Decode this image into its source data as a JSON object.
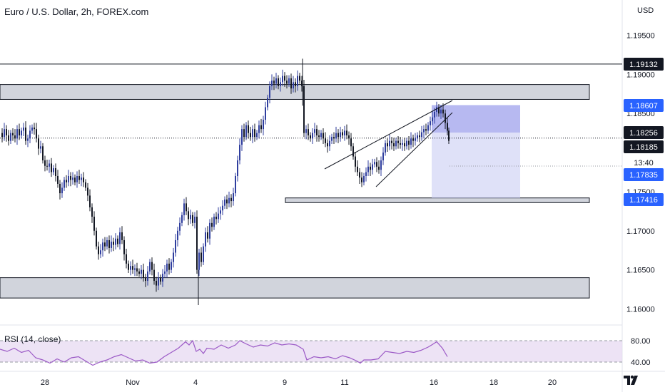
{
  "header": {
    "title": "Euro / U.S. Dollar, 2h, FOREX.com",
    "currency": "USD"
  },
  "rsi": {
    "title": "RSI (14, close)",
    "levels": [
      "80.00",
      "40.00"
    ]
  },
  "colors": {
    "up": "#2f3e9e",
    "down": "#131722",
    "zone_fill": "#d1d4dc",
    "zone_stroke": "#131722",
    "target_zone": "#7b7fe6",
    "stop_zone": "#c5c9f2",
    "rsi_line": "#9b59c6",
    "rsi_band": "#e9dcf2",
    "label_blue": "#2962ff",
    "label_dark": "#131722"
  },
  "chart_data": {
    "type": "candlestick",
    "title": "Euro / U.S. Dollar, 2h, FOREX.com",
    "y_axis": {
      "ticks": [
        "1.19500",
        "1.19000",
        "1.18500",
        "1.17500",
        "1.17000",
        "1.16500",
        "1.16000"
      ],
      "range": [
        1.156,
        1.199
      ]
    },
    "x_axis": {
      "ticks": [
        "28",
        "Nov",
        "4",
        "9",
        "11",
        "16",
        "18",
        "20"
      ]
    },
    "price_labels": [
      {
        "value": "1.19132",
        "style": "dark"
      },
      {
        "value": "1.18607",
        "style": "blue"
      },
      {
        "value": "1.18256",
        "style": "dark"
      },
      {
        "value": "1.18185",
        "style": "dark"
      },
      {
        "value": "13:40",
        "style": "white"
      },
      {
        "value": "1.17835",
        "style": "blue"
      },
      {
        "value": "1.17416",
        "style": "blue"
      }
    ],
    "horizontal_lines": [
      1.19132
    ],
    "dotted_line": 1.18185,
    "zones": [
      {
        "name": "resistance",
        "from": 1.1868,
        "to": 1.1887
      },
      {
        "name": "support-upper",
        "from": 1.1736,
        "to": 1.1742
      },
      {
        "name": "support-lower",
        "from": 1.1614,
        "to": 1.164
      }
    ],
    "position": {
      "entry": 1.18256,
      "stop": 1.18607,
      "target": 1.17416
    },
    "candle_path": [
      [
        0,
        1.1825
      ],
      [
        3,
        1.182
      ],
      [
        6,
        1.183
      ],
      [
        9,
        1.1822
      ],
      [
        12,
        1.1815
      ],
      [
        15,
        1.1825
      ],
      [
        18,
        1.1822
      ],
      [
        21,
        1.1818
      ],
      [
        24,
        1.183
      ],
      [
        27,
        1.1822
      ],
      [
        30,
        1.1828
      ],
      [
        33,
        1.1832
      ],
      [
        36,
        1.1815
      ],
      [
        39,
        1.1818
      ],
      [
        42,
        1.1828
      ],
      [
        45,
        1.1832
      ],
      [
        48,
        1.183
      ],
      [
        51,
        1.1818
      ],
      [
        54,
        1.1805
      ],
      [
        57,
        1.1808
      ],
      [
        60,
        1.179
      ],
      [
        63,
        1.1783
      ],
      [
        66,
        1.1782
      ],
      [
        69,
        1.1786
      ],
      [
        72,
        1.1775
      ],
      [
        75,
        1.178
      ],
      [
        78,
        1.177
      ],
      [
        81,
        1.176
      ],
      [
        84,
        1.1748
      ],
      [
        87,
        1.1755
      ],
      [
        90,
        1.1765
      ],
      [
        93,
        1.1762
      ],
      [
        96,
        1.177
      ],
      [
        99,
        1.1765
      ],
      [
        102,
        1.1768
      ],
      [
        105,
        1.1762
      ],
      [
        108,
        1.177
      ],
      [
        111,
        1.1765
      ],
      [
        114,
        1.1768
      ],
      [
        117,
        1.1762
      ],
      [
        120,
        1.1755
      ],
      [
        123,
        1.1745
      ],
      [
        126,
        1.173
      ],
      [
        129,
        1.1718
      ],
      [
        132,
        1.17
      ],
      [
        135,
        1.168
      ],
      [
        138,
        1.167
      ],
      [
        141,
        1.1675
      ],
      [
        144,
        1.1685
      ],
      [
        147,
        1.168
      ],
      [
        150,
        1.1688
      ],
      [
        153,
        1.1678
      ],
      [
        156,
        1.1686
      ],
      [
        159,
        1.1682
      ],
      [
        162,
        1.169
      ],
      [
        165,
        1.1683
      ],
      [
        168,
        1.1698
      ],
      [
        171,
        1.1688
      ],
      [
        174,
        1.167
      ],
      [
        177,
        1.1658
      ],
      [
        180,
        1.165
      ],
      [
        183,
        1.1655
      ],
      [
        186,
        1.165
      ],
      [
        189,
        1.1652
      ],
      [
        192,
        1.1648
      ],
      [
        195,
        1.1645
      ],
      [
        198,
        1.165
      ],
      [
        201,
        1.164
      ],
      [
        204,
        1.1636
      ],
      [
        207,
        1.1648
      ],
      [
        210,
        1.166
      ],
      [
        213,
        1.165
      ],
      [
        216,
        1.1636
      ],
      [
        219,
        1.163
      ],
      [
        222,
        1.164
      ],
      [
        225,
        1.1635
      ],
      [
        228,
        1.1645
      ],
      [
        231,
        1.1648
      ],
      [
        234,
        1.1658
      ],
      [
        237,
        1.165
      ],
      [
        240,
        1.166
      ],
      [
        243,
        1.1672
      ],
      [
        246,
        1.1688
      ],
      [
        249,
        1.17
      ],
      [
        252,
        1.171
      ],
      [
        255,
        1.172
      ],
      [
        258,
        1.1735
      ],
      [
        261,
        1.1725
      ],
      [
        264,
        1.1715
      ],
      [
        267,
        1.172
      ],
      [
        270,
        1.171
      ],
      [
        273,
        1.1718
      ],
      [
        276,
        1.165
      ],
      [
        279,
        1.1672
      ],
      [
        282,
        1.166
      ],
      [
        285,
        1.168
      ],
      [
        288,
        1.1698
      ],
      [
        291,
        1.169
      ],
      [
        294,
        1.171
      ],
      [
        297,
        1.1705
      ],
      [
        300,
        1.1718
      ],
      [
        303,
        1.1715
      ],
      [
        306,
        1.1722
      ],
      [
        309,
        1.1726
      ],
      [
        312,
        1.1732
      ],
      [
        315,
        1.174
      ],
      [
        318,
        1.1735
      ],
      [
        321,
        1.1742
      ],
      [
        324,
        1.1738
      ],
      [
        327,
        1.1748
      ],
      [
        330,
        1.177
      ],
      [
        333,
        1.179
      ],
      [
        336,
        1.181
      ],
      [
        339,
        1.183
      ],
      [
        342,
        1.182
      ],
      [
        345,
        1.1835
      ],
      [
        348,
        1.1825
      ],
      [
        351,
        1.182
      ],
      [
        354,
        1.183
      ],
      [
        357,
        1.182
      ],
      [
        360,
        1.1825
      ],
      [
        363,
        1.1835
      ],
      [
        366,
        1.183
      ],
      [
        369,
        1.1842
      ],
      [
        372,
        1.1858
      ],
      [
        375,
        1.187
      ],
      [
        378,
        1.1885
      ],
      [
        381,
        1.1892
      ],
      [
        384,
        1.1888
      ],
      [
        387,
        1.1895
      ],
      [
        390,
        1.1885
      ],
      [
        393,
        1.189
      ],
      [
        396,
        1.1898
      ],
      [
        399,
        1.1892
      ],
      [
        402,
        1.1888
      ],
      [
        405,
        1.1895
      ],
      [
        408,
        1.1882
      ],
      [
        411,
        1.189
      ],
      [
        414,
        1.1885
      ],
      [
        417,
        1.1898
      ],
      [
        420,
        1.1892
      ],
      [
        423,
        1.1885
      ],
      [
        426,
        1.1825
      ],
      [
        429,
        1.183
      ],
      [
        432,
        1.1822
      ],
      [
        435,
        1.1818
      ],
      [
        438,
        1.1825
      ],
      [
        441,
        1.183
      ],
      [
        444,
        1.1822
      ],
      [
        447,
        1.182
      ],
      [
        450,
        1.1825
      ],
      [
        453,
        1.1818
      ],
      [
        456,
        1.1812
      ],
      [
        459,
        1.1808
      ],
      [
        462,
        1.1815
      ],
      [
        465,
        1.182
      ],
      [
        468,
        1.1818
      ],
      [
        471,
        1.1825
      ],
      [
        474,
        1.182
      ],
      [
        477,
        1.1826
      ],
      [
        480,
        1.1822
      ],
      [
        483,
        1.1828
      ],
      [
        486,
        1.1822
      ],
      [
        489,
        1.1818
      ],
      [
        492,
        1.1808
      ],
      [
        495,
        1.1795
      ],
      [
        498,
        1.1782
      ],
      [
        501,
        1.1775
      ],
      [
        504,
        1.1768
      ],
      [
        507,
        1.1762
      ],
      [
        510,
        1.177
      ],
      [
        513,
        1.1775
      ],
      [
        516,
        1.1782
      ],
      [
        519,
        1.1778
      ],
      [
        522,
        1.1785
      ],
      [
        525,
        1.1788
      ],
      [
        528,
        1.1782
      ],
      [
        531,
        1.1778
      ],
      [
        534,
        1.179
      ],
      [
        537,
        1.18
      ],
      [
        540,
        1.1812
      ],
      [
        543,
        1.1808
      ],
      [
        546,
        1.1815
      ],
      [
        549,
        1.1812
      ],
      [
        552,
        1.1808
      ],
      [
        555,
        1.1815
      ],
      [
        558,
        1.1812
      ],
      [
        561,
        1.181
      ],
      [
        564,
        1.1812
      ],
      [
        567,
        1.1808
      ],
      [
        570,
        1.1815
      ],
      [
        573,
        1.181
      ],
      [
        576,
        1.1818
      ],
      [
        579,
        1.1815
      ],
      [
        582,
        1.1818
      ],
      [
        585,
        1.1822
      ],
      [
        588,
        1.182
      ],
      [
        591,
        1.1826
      ],
      [
        594,
        1.183
      ],
      [
        597,
        1.1828
      ],
      [
        600,
        1.1835
      ],
      [
        603,
        1.184
      ],
      [
        606,
        1.1845
      ],
      [
        609,
        1.1852
      ],
      [
        612,
        1.1858
      ],
      [
        615,
        1.185
      ],
      [
        618,
        1.1855
      ],
      [
        621,
        1.185
      ],
      [
        624,
        1.1838
      ],
      [
        627,
        1.1828
      ],
      [
        629,
        1.1815
      ]
    ],
    "rsi_path": [
      [
        0,
        64
      ],
      [
        10,
        60
      ],
      [
        20,
        66
      ],
      [
        30,
        58
      ],
      [
        40,
        62
      ],
      [
        50,
        48
      ],
      [
        60,
        44
      ],
      [
        70,
        38
      ],
      [
        80,
        46
      ],
      [
        90,
        40
      ],
      [
        100,
        48
      ],
      [
        110,
        50
      ],
      [
        120,
        42
      ],
      [
        130,
        34
      ],
      [
        140,
        40
      ],
      [
        150,
        44
      ],
      [
        160,
        50
      ],
      [
        170,
        54
      ],
      [
        180,
        48
      ],
      [
        190,
        42
      ],
      [
        200,
        44
      ],
      [
        210,
        38
      ],
      [
        220,
        40
      ],
      [
        230,
        50
      ],
      [
        240,
        58
      ],
      [
        250,
        66
      ],
      [
        255,
        72
      ],
      [
        260,
        78
      ],
      [
        265,
        72
      ],
      [
        270,
        80
      ],
      [
        275,
        60
      ],
      [
        280,
        64
      ],
      [
        285,
        56
      ],
      [
        290,
        66
      ],
      [
        300,
        64
      ],
      [
        310,
        72
      ],
      [
        320,
        66
      ],
      [
        330,
        72
      ],
      [
        336,
        80
      ],
      [
        345,
        74
      ],
      [
        355,
        68
      ],
      [
        365,
        72
      ],
      [
        375,
        70
      ],
      [
        385,
        76
      ],
      [
        395,
        72
      ],
      [
        405,
        74
      ],
      [
        415,
        72
      ],
      [
        425,
        64
      ],
      [
        430,
        44
      ],
      [
        440,
        50
      ],
      [
        450,
        48
      ],
      [
        460,
        50
      ],
      [
        470,
        46
      ],
      [
        480,
        52
      ],
      [
        490,
        48
      ],
      [
        500,
        42
      ],
      [
        505,
        38
      ],
      [
        510,
        44
      ],
      [
        520,
        44
      ],
      [
        530,
        46
      ],
      [
        540,
        60
      ],
      [
        550,
        58
      ],
      [
        560,
        56
      ],
      [
        570,
        60
      ],
      [
        580,
        58
      ],
      [
        590,
        62
      ],
      [
        600,
        68
      ],
      [
        605,
        72
      ],
      [
        612,
        78
      ],
      [
        620,
        66
      ],
      [
        627,
        50
      ]
    ]
  }
}
